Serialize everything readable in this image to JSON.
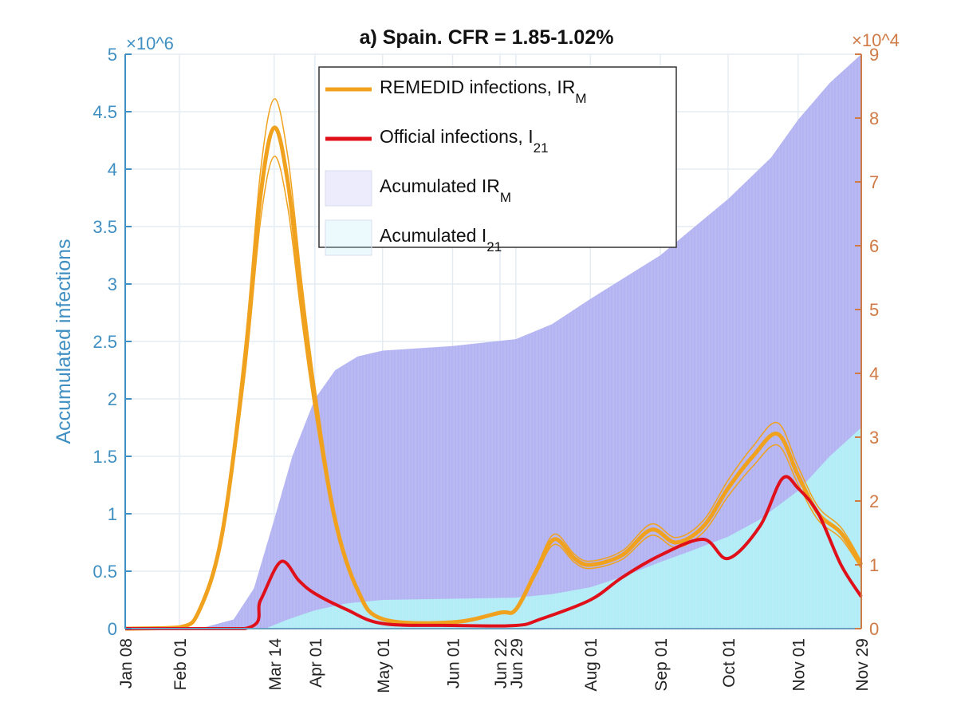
{
  "chart_data": {
    "type": "area+line",
    "title": "a) Spain. CFR = 1.85-1.02%",
    "ylabel_left": "Accumulated infections",
    "y_left_multiplier": "×10^6",
    "y_right_multiplier": "×10^4",
    "ylim_left": [
      0,
      5
    ],
    "ylim_right": [
      0,
      9
    ],
    "yticks_left": [
      "0",
      "0.5",
      "1",
      "1.5",
      "2",
      "2.5",
      "3",
      "3.5",
      "4",
      "4.5",
      "5"
    ],
    "yticks_right": [
      "0",
      "1",
      "2",
      "3",
      "4",
      "5",
      "6",
      "7",
      "8",
      "9"
    ],
    "x_range": [
      "2020-01-08",
      "2020-11-29"
    ],
    "xticks": [
      {
        "label": "Jan 08",
        "date": "2020-01-08"
      },
      {
        "label": "Feb 01",
        "date": "2020-02-01"
      },
      {
        "label": "Mar 14",
        "date": "2020-03-14"
      },
      {
        "label": "Apr 01",
        "date": "2020-04-01"
      },
      {
        "label": "May 01",
        "date": "2020-05-01"
      },
      {
        "label": "Jun 01",
        "date": "2020-06-01"
      },
      {
        "label": "Jun 22",
        "date": "2020-06-22"
      },
      {
        "label": "Jun 29",
        "date": "2020-06-29"
      },
      {
        "label": "Aug 01",
        "date": "2020-08-01"
      },
      {
        "label": "Sep 01",
        "date": "2020-09-01"
      },
      {
        "label": "Oct 01",
        "date": "2020-10-01"
      },
      {
        "label": "Nov 01",
        "date": "2020-11-01"
      },
      {
        "label": "Nov 29",
        "date": "2020-11-29"
      }
    ],
    "grid": true,
    "legend_placement": "top-center",
    "series": [
      {
        "name": "Acumulated IR",
        "sub": "M",
        "kind": "area",
        "axis": "left",
        "color": "#b4b4f2",
        "points": [
          [
            "2020-01-08",
            0
          ],
          [
            "2020-02-10",
            0
          ],
          [
            "2020-02-25",
            0.08
          ],
          [
            "2020-03-05",
            0.35
          ],
          [
            "2020-03-14",
            0.95
          ],
          [
            "2020-03-22",
            1.5
          ],
          [
            "2020-04-01",
            2.0
          ],
          [
            "2020-04-10",
            2.25
          ],
          [
            "2020-04-20",
            2.37
          ],
          [
            "2020-05-01",
            2.42
          ],
          [
            "2020-06-01",
            2.46
          ],
          [
            "2020-06-29",
            2.52
          ],
          [
            "2020-07-15",
            2.65
          ],
          [
            "2020-08-01",
            2.87
          ],
          [
            "2020-09-01",
            3.25
          ],
          [
            "2020-10-01",
            3.74
          ],
          [
            "2020-10-20",
            4.1
          ],
          [
            "2020-11-01",
            4.43
          ],
          [
            "2020-11-15",
            4.75
          ],
          [
            "2020-11-29",
            5.0
          ]
        ]
      },
      {
        "name": "Acumulated I",
        "sub": "21",
        "kind": "area",
        "axis": "left",
        "color": "#b2ecf6",
        "points": [
          [
            "2020-01-08",
            0
          ],
          [
            "2020-03-10",
            0
          ],
          [
            "2020-03-20",
            0.08
          ],
          [
            "2020-04-01",
            0.16
          ],
          [
            "2020-04-15",
            0.22
          ],
          [
            "2020-05-01",
            0.25
          ],
          [
            "2020-06-01",
            0.26
          ],
          [
            "2020-06-29",
            0.27
          ],
          [
            "2020-07-15",
            0.3
          ],
          [
            "2020-08-01",
            0.36
          ],
          [
            "2020-08-15",
            0.45
          ],
          [
            "2020-09-01",
            0.58
          ],
          [
            "2020-09-15",
            0.68
          ],
          [
            "2020-10-01",
            0.8
          ],
          [
            "2020-10-15",
            0.95
          ],
          [
            "2020-11-01",
            1.2
          ],
          [
            "2020-11-15",
            1.5
          ],
          [
            "2020-11-29",
            1.75
          ]
        ]
      },
      {
        "name": "REMEDID infections, IR",
        "sub": "M",
        "kind": "line",
        "axis": "right",
        "color": "#f0a21e",
        "points": [
          [
            "2020-01-08",
            0
          ],
          [
            "2020-02-01",
            0.02
          ],
          [
            "2020-02-10",
            0.3
          ],
          [
            "2020-02-20",
            1.5
          ],
          [
            "2020-03-01",
            4.2
          ],
          [
            "2020-03-08",
            6.8
          ],
          [
            "2020-03-14",
            7.85
          ],
          [
            "2020-03-20",
            7.0
          ],
          [
            "2020-03-26",
            5.2
          ],
          [
            "2020-04-01",
            3.6
          ],
          [
            "2020-04-10",
            1.7
          ],
          [
            "2020-04-20",
            0.6
          ],
          [
            "2020-05-01",
            0.15
          ],
          [
            "2020-06-01",
            0.1
          ],
          [
            "2020-06-22",
            0.25
          ],
          [
            "2020-06-29",
            0.3
          ],
          [
            "2020-07-08",
            0.9
          ],
          [
            "2020-07-16",
            1.4
          ],
          [
            "2020-07-25",
            1.1
          ],
          [
            "2020-08-01",
            1.0
          ],
          [
            "2020-08-15",
            1.15
          ],
          [
            "2020-08-28",
            1.55
          ],
          [
            "2020-09-08",
            1.35
          ],
          [
            "2020-09-20",
            1.6
          ],
          [
            "2020-10-01",
            2.2
          ],
          [
            "2020-10-12",
            2.7
          ],
          [
            "2020-10-23",
            3.05
          ],
          [
            "2020-11-01",
            2.4
          ],
          [
            "2020-11-10",
            1.8
          ],
          [
            "2020-11-20",
            1.5
          ],
          [
            "2020-11-29",
            1.0
          ]
        ]
      },
      {
        "name": "Official infections, I",
        "sub": "21",
        "kind": "line",
        "axis": "right",
        "color": "#e0101a",
        "points": [
          [
            "2020-01-08",
            0
          ],
          [
            "2020-03-01",
            0
          ],
          [
            "2020-03-08",
            0.45
          ],
          [
            "2020-03-17",
            1.05
          ],
          [
            "2020-03-25",
            0.75
          ],
          [
            "2020-04-01",
            0.55
          ],
          [
            "2020-04-15",
            0.3
          ],
          [
            "2020-05-01",
            0.08
          ],
          [
            "2020-06-01",
            0.05
          ],
          [
            "2020-06-29",
            0.05
          ],
          [
            "2020-07-10",
            0.15
          ],
          [
            "2020-08-01",
            0.45
          ],
          [
            "2020-08-15",
            0.8
          ],
          [
            "2020-09-01",
            1.15
          ],
          [
            "2020-09-20",
            1.4
          ],
          [
            "2020-10-01",
            1.1
          ],
          [
            "2020-10-15",
            1.6
          ],
          [
            "2020-10-25",
            2.35
          ],
          [
            "2020-11-01",
            2.2
          ],
          [
            "2020-11-10",
            1.8
          ],
          [
            "2020-11-20",
            1.0
          ],
          [
            "2020-11-29",
            0.5
          ]
        ]
      }
    ],
    "confidence_band_remedid_peak": [
      7.4,
      8.3
    ]
  }
}
